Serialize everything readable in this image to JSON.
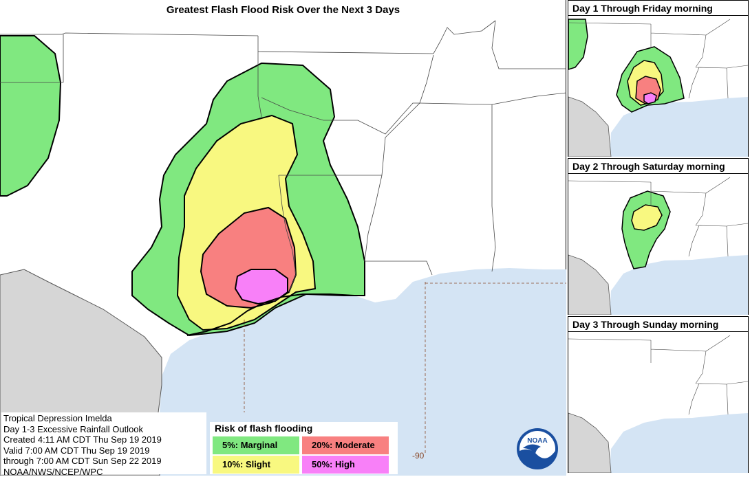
{
  "title": "Greatest Flash Flood Risk Over the Next 3 Days",
  "panels": [
    {
      "title": "Day 1 Through Friday morning"
    },
    {
      "title": "Day 2 Through Saturday morning"
    },
    {
      "title": "Day 3 Through Sunday morning"
    }
  ],
  "info": {
    "line1": "Tropical Depression Imelda",
    "line2": "Day 1-3 Excessive Rainfall Outlook",
    "line3": "Created 4:11 AM CDT Thu Sep 19 2019",
    "line4": "Valid 7:00 AM CDT Thu Sep 19 2019",
    "line5": "through 7:00 AM CDT Sun Sep 22 2019",
    "line6": "NOAA/NWS/NCEP/WPC"
  },
  "legend": {
    "title": "Risk of flash flooding",
    "items": [
      {
        "label": "5%: Marginal",
        "color": "#80e880"
      },
      {
        "label": "20%: Moderate",
        "color": "#f88080"
      },
      {
        "label": "10%: Slight",
        "color": "#f8f880"
      },
      {
        "label": "50%: High",
        "color": "#f880f8"
      }
    ]
  },
  "logo": {
    "text": "NOAA"
  },
  "longitude_label": "-90",
  "colors": {
    "water": "#d4e4f4",
    "mexico": "#d6d6d6",
    "marginal": "#80e880",
    "slight": "#f8f880",
    "moderate": "#f88080",
    "high": "#f880f8"
  }
}
